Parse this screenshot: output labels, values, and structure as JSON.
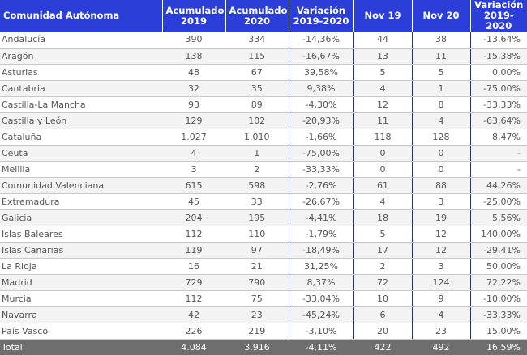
{
  "headers": {
    "region": "Comunidad Autónoma",
    "acc2019_l1": "Acumulado",
    "acc2019_l2": "2019",
    "acc2020_l1": "Acumulado",
    "acc2020_l2": "2020",
    "var_l1": "Variación",
    "var_l2": "2019-2020",
    "nov19": "Nov 19",
    "nov20": "Nov 20",
    "varnov_l1": "Variación",
    "varnov_l2": "2019-2020"
  },
  "rows": [
    {
      "region": "Andalucía",
      "acc2019": "390",
      "acc2020": "334",
      "var": "-14,36%",
      "nov19": "44",
      "nov20": "38",
      "varnov": "-13,64%"
    },
    {
      "region": "Aragón",
      "acc2019": "138",
      "acc2020": "115",
      "var": "-16,67%",
      "nov19": "13",
      "nov20": "11",
      "varnov": "-15,38%"
    },
    {
      "region": "Asturias",
      "acc2019": "48",
      "acc2020": "67",
      "var": "39,58%",
      "nov19": "5",
      "nov20": "5",
      "varnov": "0,00%"
    },
    {
      "region": "Cantabria",
      "acc2019": "32",
      "acc2020": "35",
      "var": "9,38%",
      "nov19": "4",
      "nov20": "1",
      "varnov": "-75,00%"
    },
    {
      "region": "Castilla-La Mancha",
      "acc2019": "93",
      "acc2020": "89",
      "var": "-4,30%",
      "nov19": "12",
      "nov20": "8",
      "varnov": "-33,33%"
    },
    {
      "region": "Castilla y León",
      "acc2019": "129",
      "acc2020": "102",
      "var": "-20,93%",
      "nov19": "11",
      "nov20": "4",
      "varnov": "-63,64%"
    },
    {
      "region": "Cataluña",
      "acc2019": "1.027",
      "acc2020": "1.010",
      "var": "-1,66%",
      "nov19": "118",
      "nov20": "128",
      "varnov": "8,47%"
    },
    {
      "region": "Ceuta",
      "acc2019": "4",
      "acc2020": "1",
      "var": "-75,00%",
      "nov19": "0",
      "nov20": "0",
      "varnov": "-"
    },
    {
      "region": "Melilla",
      "acc2019": "3",
      "acc2020": "2",
      "var": "-33,33%",
      "nov19": "0",
      "nov20": "0",
      "varnov": "-"
    },
    {
      "region": "Comunidad Valenciana",
      "acc2019": "615",
      "acc2020": "598",
      "var": "-2,76%",
      "nov19": "61",
      "nov20": "88",
      "varnov": "44,26%"
    },
    {
      "region": "Extremadura",
      "acc2019": "45",
      "acc2020": "33",
      "var": "-26,67%",
      "nov19": "4",
      "nov20": "3",
      "varnov": "-25,00%"
    },
    {
      "region": "Galicia",
      "acc2019": "204",
      "acc2020": "195",
      "var": "-4,41%",
      "nov19": "18",
      "nov20": "19",
      "varnov": "5,56%"
    },
    {
      "region": "Islas Baleares",
      "acc2019": "112",
      "acc2020": "110",
      "var": "-1,79%",
      "nov19": "5",
      "nov20": "12",
      "varnov": "140,00%"
    },
    {
      "region": "Islas Canarias",
      "acc2019": "119",
      "acc2020": "97",
      "var": "-18,49%",
      "nov19": "17",
      "nov20": "12",
      "varnov": "-29,41%"
    },
    {
      "region": "La Rioja",
      "acc2019": "16",
      "acc2020": "21",
      "var": "31,25%",
      "nov19": "2",
      "nov20": "3",
      "varnov": "50,00%"
    },
    {
      "region": "Madrid",
      "acc2019": "729",
      "acc2020": "790",
      "var": "8,37%",
      "nov19": "72",
      "nov20": "124",
      "varnov": "72,22%"
    },
    {
      "region": "Murcia",
      "acc2019": "112",
      "acc2020": "75",
      "var": "-33,04%",
      "nov19": "10",
      "nov20": "9",
      "varnov": "-10,00%"
    },
    {
      "region": "Navarra",
      "acc2019": "42",
      "acc2020": "23",
      "var": "-45,24%",
      "nov19": "6",
      "nov20": "4",
      "varnov": "-33,33%"
    },
    {
      "region": "País Vasco",
      "acc2019": "226",
      "acc2020": "219",
      "var": "-3,10%",
      "nov19": "20",
      "nov20": "23",
      "varnov": "15,00%"
    }
  ],
  "total": {
    "region": "Total",
    "acc2019": "4.084",
    "acc2020": "3.916",
    "var": "-4,11%",
    "nov19": "422",
    "nov20": "492",
    "varnov": "16,59%"
  },
  "colors": {
    "header_bg": "#2b3fd8",
    "total_bg": "#6e6e6e",
    "text": "#555555"
  }
}
